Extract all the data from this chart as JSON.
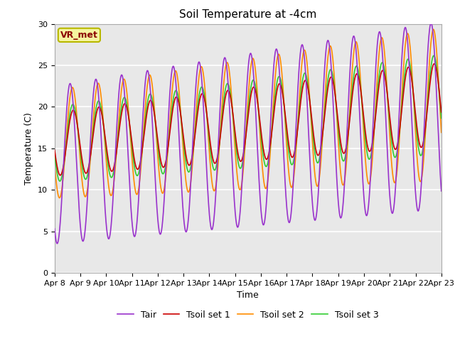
{
  "title": "Soil Temperature at -4cm",
  "xlabel": "Time",
  "ylabel": "Temperature (C)",
  "ylim": [
    0,
    30
  ],
  "bg_color": "#e8e8e8",
  "fig_color": "#ffffff",
  "annotation_text": "VR_met",
  "annotation_color": "#8B0000",
  "annotation_bg": "#f5f5a0",
  "annotation_edge": "#b8b800",
  "xtick_labels": [
    "Apr 8",
    "Apr 9",
    "Apr 10",
    "Apr 11",
    "Apr 12",
    "Apr 13",
    "Apr 14",
    "Apr 15",
    "Apr 16",
    "Apr 17",
    "Apr 18",
    "Apr 19",
    "Apr 20",
    "Apr 21",
    "Apr 22",
    "Apr 23"
  ],
  "legend": [
    "Tair",
    "Tsoil set 1",
    "Tsoil set 2",
    "Tsoil set 3"
  ],
  "colors": [
    "#9932CC",
    "#CC0000",
    "#FF8C00",
    "#32CD32"
  ],
  "linewidth": 1.2,
  "grid_color": "#ffffff",
  "tick_fontsize": 8,
  "title_fontsize": 11,
  "label_fontsize": 9,
  "legend_fontsize": 9
}
